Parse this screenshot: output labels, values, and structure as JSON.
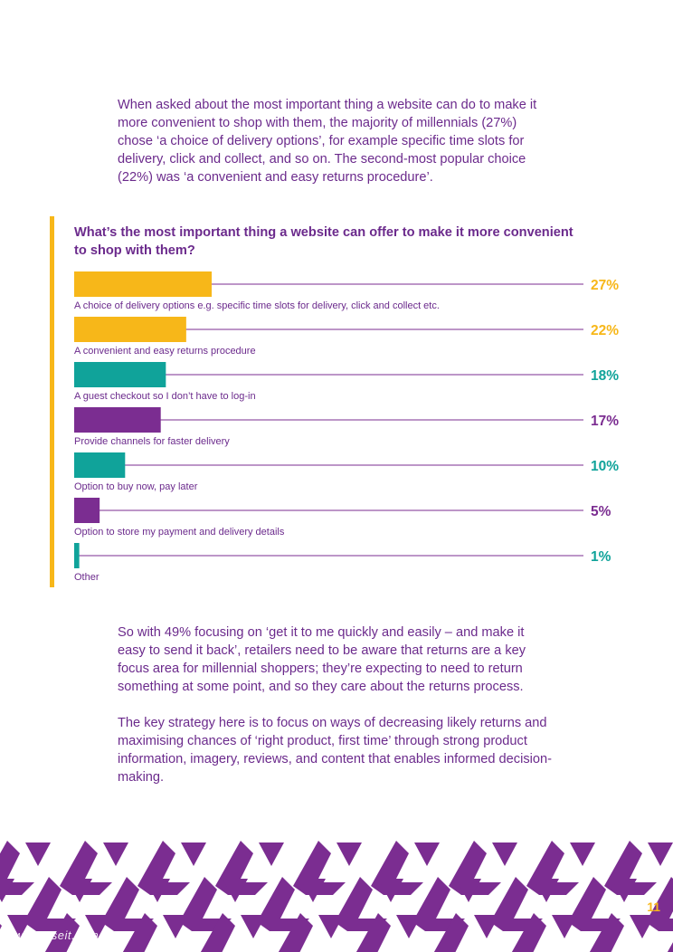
{
  "intro": "When asked about the most important thing a website can do to make it more convenient to shop with them, the majority of millennials (27%) chose ‘a choice of delivery options’, for example specific time slots for delivery, click and collect, and so on. The second-most popular choice (22%) was ‘a convenient and easy returns procedure’.",
  "paragraph2": "So with 49% focusing on ‘get it to me quickly and easily – and make it easy to send it back’, retailers need to be aware that returns are a key focus area for millennial shoppers; they’re expecting to need to return something at some point, and so they care about the returns process.",
  "paragraph3": "The key strategy here is to focus on ways of decreasing likely returns and maximising chances of ‘right product, first time’ through strong product information, imagery, reviews, and content that enables informed decision-making.",
  "page_number": "11",
  "watermark": "www.useit.com.cn",
  "colors": {
    "purple": "#7b2d91",
    "yellow": "#f7b719",
    "teal": "#10a39a",
    "text": "#6b2a8c"
  },
  "chart_data": {
    "type": "bar",
    "orientation": "horizontal",
    "title": "What’s the most important thing a website can offer to make it more convenient to shop with them?",
    "categories": [
      "A choice of delivery options e.g. specific time slots for delivery, click and collect etc.",
      "A convenient and easy returns procedure",
      "A guest checkout so I don’t have to log-in",
      "Provide channels for faster delivery",
      "Option to buy now, pay later",
      "Option to store my payment and delivery details",
      "Other"
    ],
    "values": [
      27,
      22,
      18,
      17,
      10,
      5,
      1
    ],
    "value_labels": [
      "27%",
      "22%",
      "18%",
      "17%",
      "10%",
      "5%",
      "1%"
    ],
    "bar_colors": [
      "#f7b719",
      "#f7b719",
      "#10a39a",
      "#7b2d91",
      "#10a39a",
      "#7b2d91",
      "#10a39a"
    ],
    "unit": "%",
    "xlim": [
      0,
      100
    ]
  }
}
